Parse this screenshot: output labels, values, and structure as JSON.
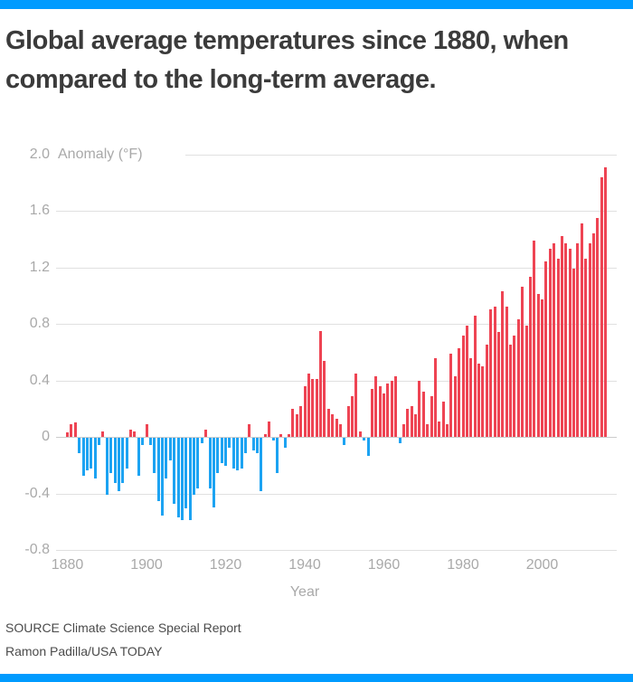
{
  "header": {
    "title_line1": "Global average temperatures since 1880, when",
    "title_line2": "compared to the long-term average."
  },
  "footer": {
    "source": "SOURCE Climate Science Special Report",
    "credit": "Ramon Padilla/USA TODAY"
  },
  "colors": {
    "accent_blue": "#009BFF",
    "bar_positive_red": "#EE4453",
    "bar_negative_blue": "#1CA3F2",
    "title_text": "#3B3B3B",
    "axis_text": "#A9A9A9",
    "gridline": "#E0E0E0",
    "footer_text": "#4B4B4B"
  },
  "chart_data": {
    "type": "bar",
    "title": "Global average temperatures since 1880, when compared to the long-term average.",
    "ylabel": "Anomaly (°F)",
    "xlabel": "Year",
    "ylim": [
      -0.8,
      2.0
    ],
    "yticks": [
      2.0,
      1.6,
      1.2,
      0.8,
      0.4,
      0,
      -0.4,
      -0.8
    ],
    "xticks": [
      1880,
      1900,
      1920,
      1940,
      1960,
      1980,
      2000
    ],
    "grid": true,
    "legend_position": "none",
    "positive_color_meaning": "warmer than long-term average",
    "negative_color_meaning": "cooler than long-term average",
    "years": [
      1880,
      1881,
      1882,
      1883,
      1884,
      1885,
      1886,
      1887,
      1888,
      1889,
      1890,
      1891,
      1892,
      1893,
      1894,
      1895,
      1896,
      1897,
      1898,
      1899,
      1900,
      1901,
      1902,
      1903,
      1904,
      1905,
      1906,
      1907,
      1908,
      1909,
      1910,
      1911,
      1912,
      1913,
      1914,
      1915,
      1916,
      1917,
      1918,
      1919,
      1920,
      1921,
      1922,
      1923,
      1924,
      1925,
      1926,
      1927,
      1928,
      1929,
      1930,
      1931,
      1932,
      1933,
      1934,
      1935,
      1936,
      1937,
      1938,
      1939,
      1940,
      1941,
      1942,
      1943,
      1944,
      1945,
      1946,
      1947,
      1948,
      1949,
      1950,
      1951,
      1952,
      1953,
      1954,
      1955,
      1956,
      1957,
      1958,
      1959,
      1960,
      1961,
      1962,
      1963,
      1964,
      1965,
      1966,
      1967,
      1968,
      1969,
      1970,
      1971,
      1972,
      1973,
      1974,
      1975,
      1976,
      1977,
      1978,
      1979,
      1980,
      1981,
      1982,
      1983,
      1984,
      1985,
      1986,
      1987,
      1988,
      1989,
      1990,
      1991,
      1992,
      1993,
      1994,
      1995,
      1996,
      1997,
      1998,
      1999,
      2000,
      2001,
      2002,
      2003,
      2004,
      2005,
      2006,
      2007,
      2008,
      2009,
      2010,
      2011,
      2012,
      2013,
      2014,
      2015,
      2016
    ],
    "values": [
      0.03,
      0.09,
      0.1,
      -0.11,
      -0.27,
      -0.23,
      -0.22,
      -0.29,
      -0.05,
      0.04,
      -0.4,
      -0.25,
      -0.32,
      -0.38,
      -0.32,
      -0.22,
      0.05,
      0.04,
      -0.27,
      -0.05,
      0.09,
      -0.05,
      -0.25,
      -0.45,
      -0.55,
      -0.29,
      -0.16,
      -0.47,
      -0.56,
      -0.58,
      -0.5,
      -0.58,
      -0.4,
      -0.36,
      -0.04,
      0.05,
      -0.36,
      -0.49,
      -0.25,
      -0.18,
      -0.2,
      -0.07,
      -0.22,
      -0.23,
      -0.22,
      -0.11,
      0.09,
      -0.09,
      -0.11,
      -0.38,
      0.02,
      0.11,
      -0.02,
      -0.25,
      0.02,
      -0.07,
      0.02,
      0.2,
      0.16,
      0.22,
      0.36,
      0.45,
      0.41,
      0.41,
      0.75,
      0.54,
      0.2,
      0.16,
      0.13,
      0.09,
      -0.05,
      0.22,
      0.29,
      0.45,
      0.04,
      -0.02,
      -0.13,
      0.34,
      0.43,
      0.36,
      0.31,
      0.38,
      0.4,
      0.43,
      -0.04,
      0.09,
      0.2,
      0.22,
      0.16,
      0.4,
      0.32,
      0.09,
      0.29,
      0.56,
      0.11,
      0.25,
      0.09,
      0.59,
      0.43,
      0.63,
      0.72,
      0.79,
      0.56,
      0.86,
      0.52,
      0.5,
      0.65,
      0.9,
      0.92,
      0.74,
      1.03,
      0.92,
      0.65,
      0.72,
      0.83,
      1.06,
      0.79,
      1.13,
      1.39,
      1.01,
      0.97,
      1.24,
      1.33,
      1.37,
      1.26,
      1.42,
      1.37,
      1.33,
      1.19,
      1.37,
      1.51,
      1.26,
      1.37,
      1.44,
      1.55,
      1.84,
      1.91
    ]
  }
}
